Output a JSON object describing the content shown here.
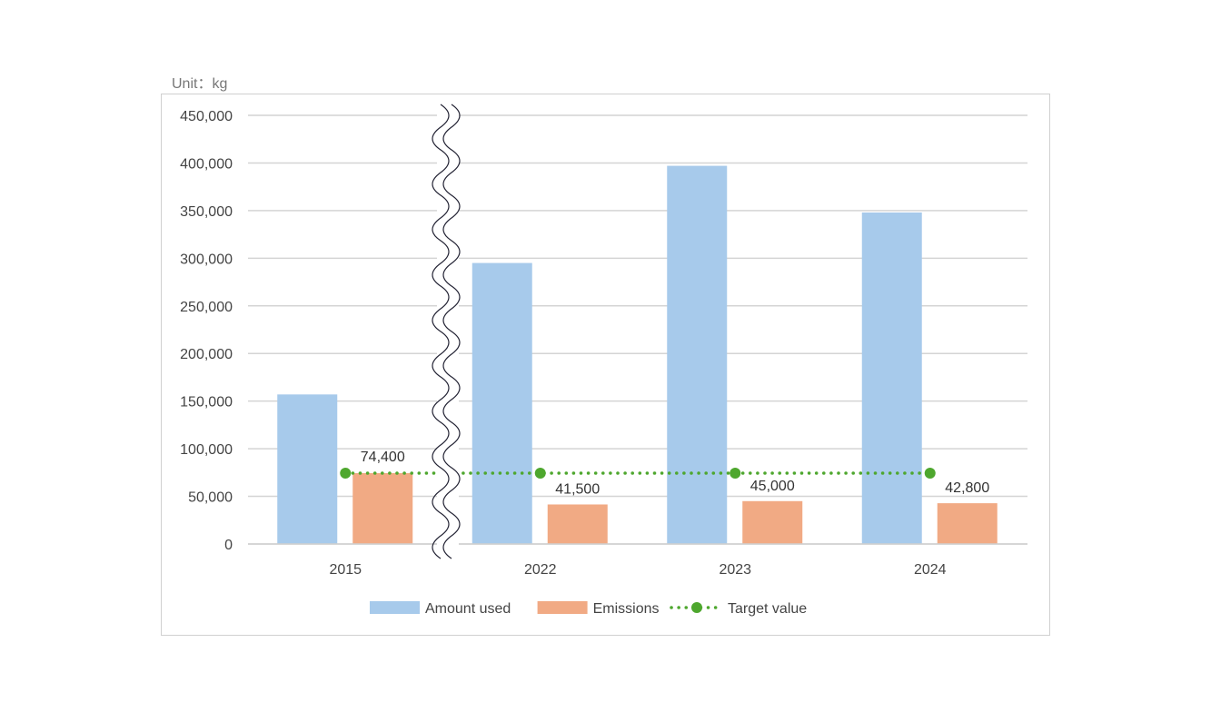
{
  "chart_data": {
    "type": "bar",
    "unit_label": "Unit：kg",
    "categories": [
      "2015",
      "2022",
      "2023",
      "2024"
    ],
    "series": [
      {
        "name": "Amount used",
        "type": "bar",
        "color": "#a7caeb",
        "values": [
          157000,
          295000,
          397000,
          348000
        ]
      },
      {
        "name": "Emissions",
        "type": "bar",
        "color": "#f1aa84",
        "values": [
          74400,
          41500,
          45000,
          42800
        ],
        "data_labels": [
          "74,400",
          "41,500",
          "45,000",
          "42,800"
        ]
      },
      {
        "name": "Target value",
        "type": "line",
        "style": "dotted",
        "color": "#4ea72e",
        "values": [
          74400,
          74400,
          74400,
          74400
        ]
      }
    ],
    "ylim": [
      0,
      450000
    ],
    "yticks": [
      0,
      50000,
      100000,
      150000,
      200000,
      250000,
      300000,
      350000,
      400000,
      450000
    ],
    "ytick_labels": [
      "0",
      "50,000",
      "100,000",
      "150,000",
      "200,000",
      "250,000",
      "300,000",
      "350,000",
      "400,000",
      "450,000"
    ],
    "grid": true,
    "axis_break": "between 2015 and 2022",
    "legend": "bottom"
  }
}
